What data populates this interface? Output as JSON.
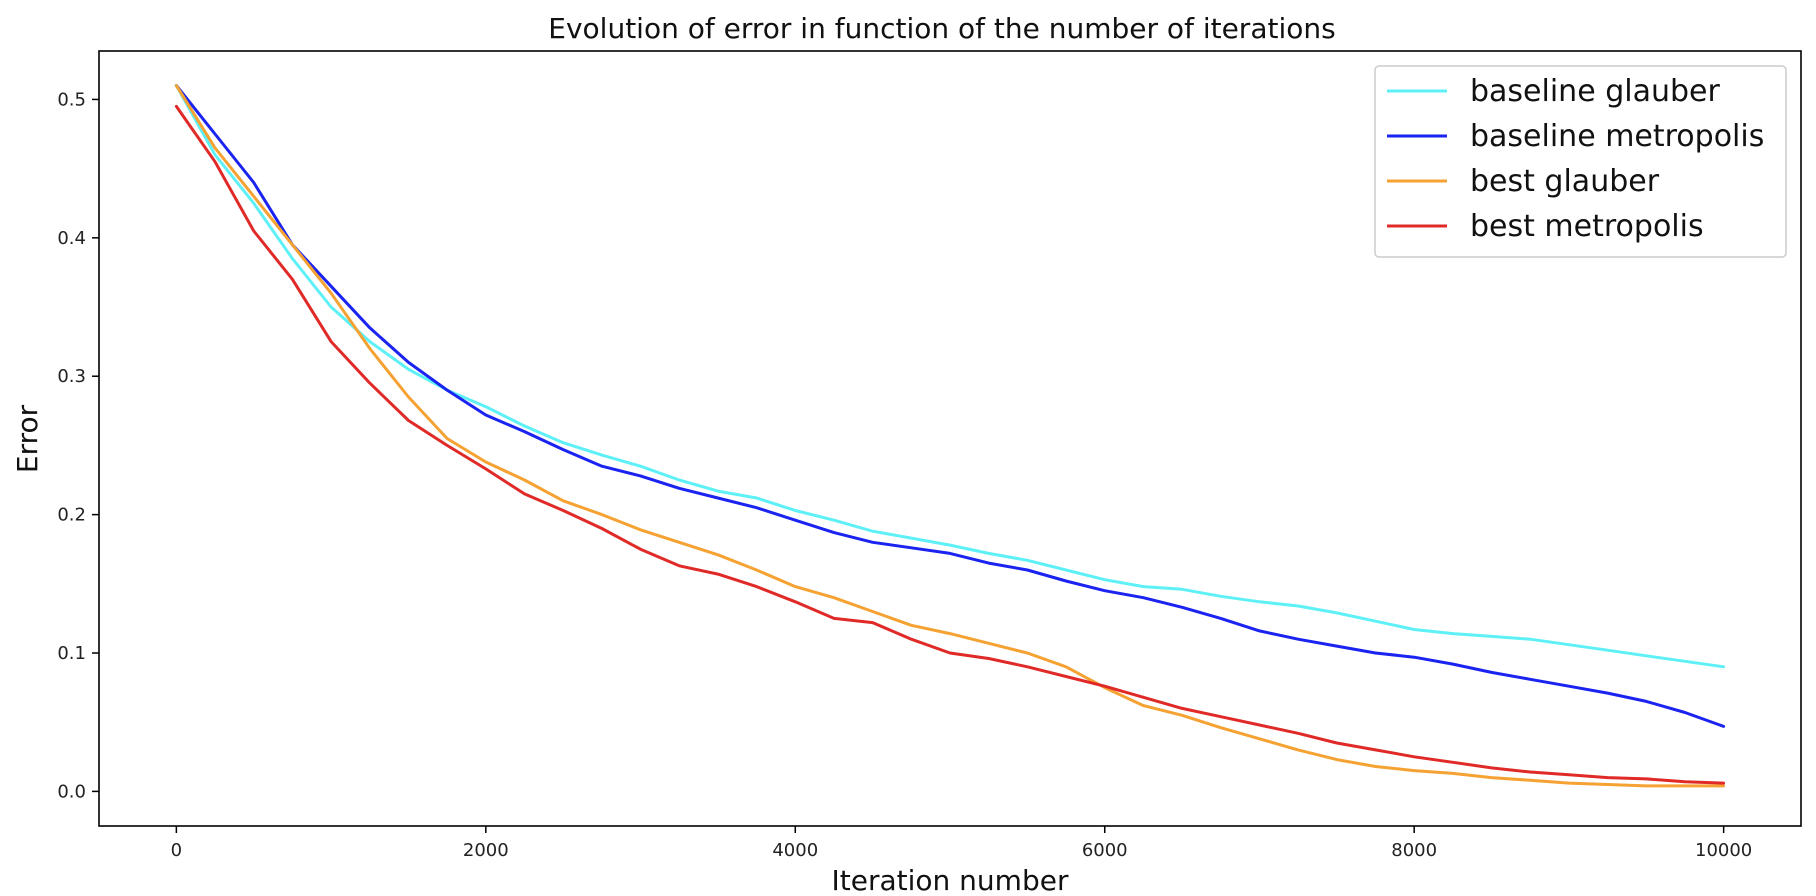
{
  "chart_data": {
    "type": "line",
    "title": "Evolution of error in function of the number of iterations",
    "xlabel": "Iteration number",
    "ylabel": "Error",
    "xlim": [
      -500,
      10500
    ],
    "ylim": [
      -0.025,
      0.535
    ],
    "xticks": [
      0,
      2000,
      4000,
      6000,
      8000,
      10000
    ],
    "yticks": [
      0.0,
      0.1,
      0.2,
      0.3,
      0.4,
      0.5
    ],
    "xtick_labels": [
      "0",
      "2000",
      "4000",
      "6000",
      "8000",
      "10000"
    ],
    "ytick_labels": [
      "0.0",
      "0.1",
      "0.2",
      "0.3",
      "0.4",
      "0.5"
    ],
    "grid": false,
    "legend_position": "top-right",
    "series": [
      {
        "name": "baseline glauber",
        "color": "#5ef0f7",
        "x": [
          0,
          250,
          500,
          750,
          1000,
          1250,
          1500,
          1750,
          2000,
          2250,
          2500,
          2750,
          3000,
          3250,
          3500,
          3750,
          4000,
          4250,
          4500,
          4750,
          5000,
          5250,
          5500,
          5750,
          6000,
          6250,
          6500,
          6750,
          7000,
          7250,
          7500,
          7750,
          8000,
          8250,
          8500,
          8750,
          9000,
          9250,
          9500,
          9750,
          10000
        ],
        "y": [
          0.51,
          0.46,
          0.425,
          0.385,
          0.35,
          0.325,
          0.305,
          0.29,
          0.278,
          0.264,
          0.252,
          0.243,
          0.235,
          0.225,
          0.217,
          0.212,
          0.203,
          0.196,
          0.188,
          0.183,
          0.178,
          0.172,
          0.167,
          0.16,
          0.153,
          0.148,
          0.146,
          0.141,
          0.137,
          0.134,
          0.129,
          0.123,
          0.117,
          0.114,
          0.112,
          0.11,
          0.106,
          0.102,
          0.098,
          0.094,
          0.09
        ]
      },
      {
        "name": "baseline metropolis",
        "color": "#1a23f0",
        "x": [
          0,
          250,
          500,
          750,
          1000,
          1250,
          1500,
          1750,
          2000,
          2250,
          2500,
          2750,
          3000,
          3250,
          3500,
          3750,
          4000,
          4250,
          4500,
          4750,
          5000,
          5250,
          5500,
          5750,
          6000,
          6250,
          6500,
          6750,
          7000,
          7250,
          7500,
          7750,
          8000,
          8250,
          8500,
          8750,
          9000,
          9250,
          9500,
          9750,
          10000
        ],
        "y": [
          0.51,
          0.475,
          0.44,
          0.395,
          0.365,
          0.335,
          0.31,
          0.29,
          0.272,
          0.26,
          0.247,
          0.235,
          0.228,
          0.219,
          0.212,
          0.205,
          0.196,
          0.187,
          0.18,
          0.176,
          0.172,
          0.165,
          0.16,
          0.152,
          0.145,
          0.14,
          0.133,
          0.125,
          0.116,
          0.11,
          0.105,
          0.1,
          0.097,
          0.092,
          0.086,
          0.081,
          0.076,
          0.071,
          0.065,
          0.057,
          0.047
        ]
      },
      {
        "name": "best glauber",
        "color": "#f5a233",
        "x": [
          0,
          250,
          500,
          750,
          1000,
          1250,
          1500,
          1750,
          2000,
          2250,
          2500,
          2750,
          3000,
          3250,
          3500,
          3750,
          4000,
          4250,
          4500,
          4750,
          5000,
          5250,
          5500,
          5750,
          6000,
          6250,
          6500,
          6750,
          7000,
          7250,
          7500,
          7750,
          8000,
          8250,
          8500,
          8750,
          9000,
          9250,
          9500,
          9750,
          10000
        ],
        "y": [
          0.51,
          0.465,
          0.43,
          0.395,
          0.36,
          0.32,
          0.285,
          0.255,
          0.238,
          0.225,
          0.21,
          0.2,
          0.189,
          0.18,
          0.171,
          0.16,
          0.148,
          0.14,
          0.13,
          0.12,
          0.114,
          0.107,
          0.1,
          0.09,
          0.075,
          0.062,
          0.055,
          0.046,
          0.038,
          0.03,
          0.023,
          0.018,
          0.015,
          0.013,
          0.01,
          0.008,
          0.006,
          0.005,
          0.004,
          0.004,
          0.004
        ]
      },
      {
        "name": "best metropolis",
        "color": "#e02a28",
        "x": [
          0,
          250,
          500,
          750,
          1000,
          1250,
          1500,
          1750,
          2000,
          2250,
          2500,
          2750,
          3000,
          3250,
          3500,
          3750,
          4000,
          4250,
          4500,
          4750,
          5000,
          5250,
          5500,
          5750,
          6000,
          6250,
          6500,
          6750,
          7000,
          7250,
          7500,
          7750,
          8000,
          8250,
          8500,
          8750,
          9000,
          9250,
          9500,
          9750,
          10000
        ],
        "y": [
          0.495,
          0.455,
          0.405,
          0.37,
          0.325,
          0.295,
          0.268,
          0.25,
          0.233,
          0.215,
          0.203,
          0.19,
          0.175,
          0.163,
          0.157,
          0.148,
          0.137,
          0.125,
          0.122,
          0.11,
          0.1,
          0.096,
          0.09,
          0.083,
          0.076,
          0.068,
          0.06,
          0.054,
          0.048,
          0.042,
          0.035,
          0.03,
          0.025,
          0.021,
          0.017,
          0.014,
          0.012,
          0.01,
          0.009,
          0.007,
          0.006
        ]
      }
    ]
  }
}
